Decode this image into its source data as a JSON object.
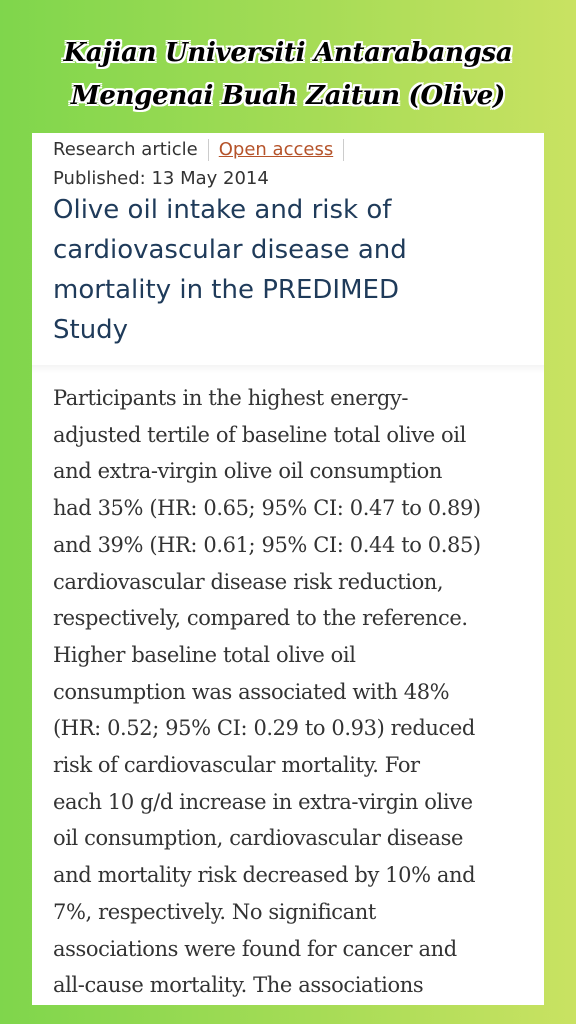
{
  "header": {
    "title_lines": [
      "Kajian Universiti Antarabangsa",
      "Mengenai Buah Zaitun (Olive)"
    ]
  },
  "article": {
    "type_label": "Research article",
    "access": "Open access",
    "published": "Published: 13 May 2014",
    "title_lines": [
      "Olive oil intake and risk of",
      "cardiovascular disease and",
      "mortality in the PREDIMED",
      "Study"
    ]
  },
  "body": {
    "lines": [
      "Participants in the highest energy-",
      "adjusted tertile of baseline total olive oil",
      "and extra-virgin olive oil consumption",
      "had 35% (HR: 0.65; 95% CI: 0.47 to 0.89)",
      "and 39% (HR: 0.61; 95% CI: 0.44 to 0.85)",
      "cardiovascular disease risk reduction,",
      "respectively, compared to the reference.",
      "Higher baseline total olive oil",
      "consumption was associated with 48%",
      "(HR: 0.52; 95% CI: 0.29 to 0.93) reduced",
      "risk of cardiovascular mortality. For",
      "each 10 g/d increase in extra-virgin olive",
      "oil consumption, cardiovascular disease",
      "and mortality risk decreased by 10% and",
      "7%, respectively. No significant",
      "associations were found for cancer and",
      "all-cause mortality. The associations"
    ]
  }
}
